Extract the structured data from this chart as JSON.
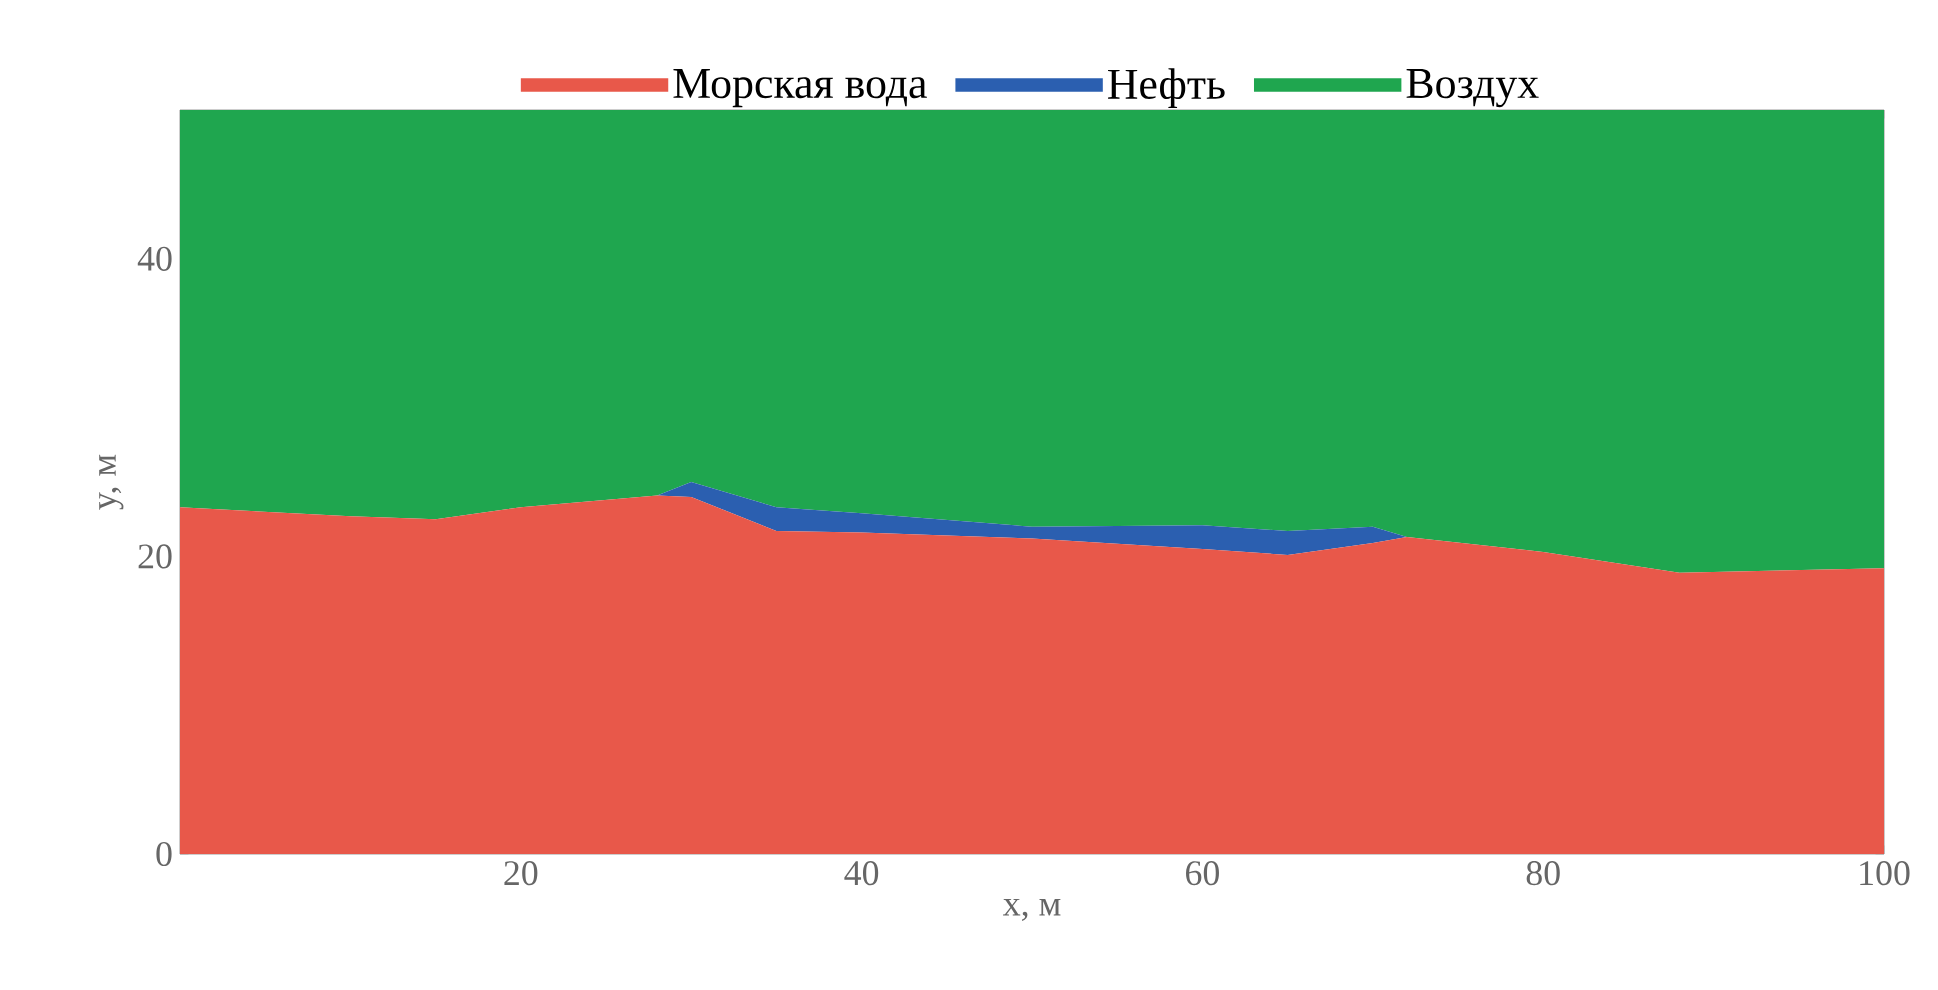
{
  "chart_data": {
    "type": "area",
    "stacked": true,
    "xlabel": "x, м",
    "ylabel": "y, м",
    "x": [
      0,
      10,
      15,
      20,
      28,
      30,
      35,
      40,
      50,
      60,
      65,
      70,
      72,
      80,
      88,
      100
    ],
    "series": [
      {
        "name": "Морская вода",
        "color": "#e8584a",
        "values": [
          23.3,
          22.7,
          22.5,
          23.3,
          24.1,
          24.0,
          21.7,
          21.6,
          21.2,
          20.5,
          20.1,
          20.9,
          21.3,
          20.3,
          18.9,
          19.2
        ]
      },
      {
        "name": "Нефть",
        "color": "#2b5fb0",
        "values": [
          0,
          0,
          0,
          0,
          0,
          1.0,
          1.6,
          1.3,
          0.8,
          1.6,
          1.6,
          1.1,
          0,
          0,
          0,
          0
        ]
      },
      {
        "name": "Воздух",
        "color": "#1fa64f",
        "values": [
          26.7,
          27.3,
          27.5,
          26.7,
          25.9,
          25.0,
          26.7,
          27.1,
          28.0,
          27.9,
          28.3,
          28.0,
          28.7,
          29.7,
          31.1,
          30.8
        ]
      }
    ],
    "xlim": [
      0,
      100
    ],
    "ylim": [
      0,
      50
    ],
    "xticks": [
      20,
      40,
      60,
      80,
      100
    ],
    "yticks": [
      0,
      20,
      40
    ],
    "legend": "top"
  }
}
